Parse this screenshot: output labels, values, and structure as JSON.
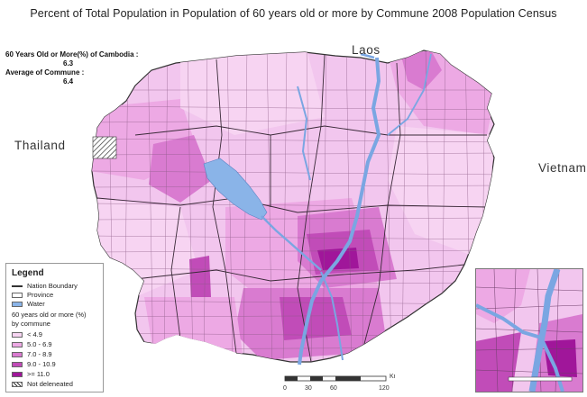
{
  "title": "Percent of Total Population in Population of 60 years old or more by Commune  2008 Population Census",
  "stats": {
    "cambodia_label": "60 Years Old or More(%) of Cambodia :",
    "cambodia_value": "6.3",
    "commune_label": "Average of Commune :",
    "commune_value": "6.4"
  },
  "countries": {
    "laos": "Laos",
    "thailand": "Thailand",
    "vietnam": "Vietnam"
  },
  "legend": {
    "title": "Legend",
    "items": [
      {
        "label": "Nation Boundary",
        "kind": "line",
        "color": "#333333"
      },
      {
        "label": "Province",
        "kind": "box",
        "color": "#ffffff"
      },
      {
        "label": "Water",
        "kind": "fill",
        "color": "#8ab4e8"
      }
    ],
    "class_title_line1": "60 years old or more (%)",
    "class_title_line2": "by commune",
    "classes": [
      {
        "label": "< 4.9",
        "color": "#f7d4f2"
      },
      {
        "label": "5.0 - 6.9",
        "color": "#eda9e4"
      },
      {
        "label": "7.0 - 8.9",
        "color": "#d97bd0"
      },
      {
        "label": "9.0 - 10.9",
        "color": "#c14cb8"
      },
      {
        "label": ">= 11.0",
        "color": "#a0169a"
      },
      {
        "label": "Not deleneated",
        "color": "hatch"
      }
    ]
  },
  "scale": {
    "unit": "Km",
    "ticks": [
      "0",
      "30",
      "60",
      "120"
    ]
  },
  "colors": {
    "water": "#8ab4e8",
    "outside": "#ffffff",
    "boundary": "#333333",
    "low": "#f7d4f2",
    "mid_low": "#eda9e4",
    "mid": "#d97bd0",
    "mid_high": "#c14cb8",
    "high": "#a0169a"
  }
}
